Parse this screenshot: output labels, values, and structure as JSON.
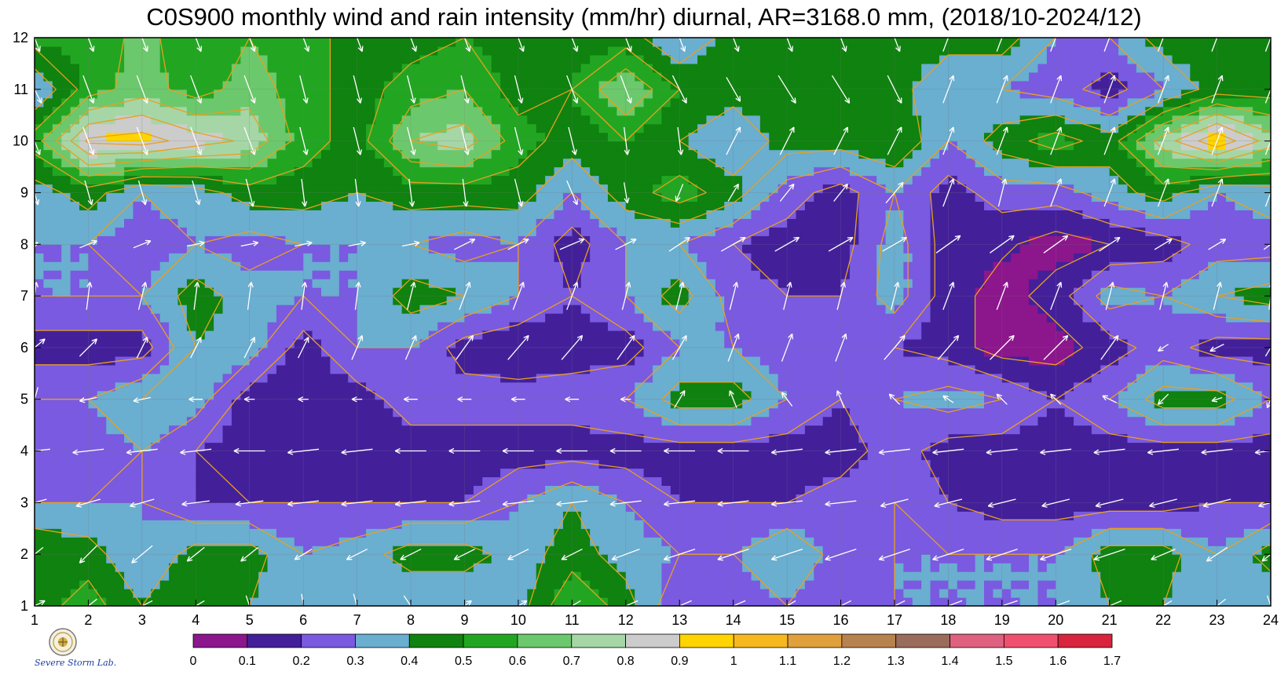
{
  "title": "C0S900 monthly wind and rain intensity (mm/hr) diurnal, AR=3168.0 mm, (2018/10-2024/12)",
  "logo": {
    "icon": "severe-storm-lab-logo-icon",
    "text": "Severe Storm Lab."
  },
  "chart_data": {
    "type": "contour",
    "variable": "rain intensity (mm/hr) with wind vectors",
    "x_ticks": [
      "1",
      "2",
      "3",
      "4",
      "5",
      "6",
      "7",
      "8",
      "9",
      "10",
      "11",
      "12",
      "13",
      "14",
      "15",
      "16",
      "17",
      "18",
      "19",
      "20",
      "21",
      "22",
      "23",
      "24"
    ],
    "y_ticks": [
      "1",
      "2",
      "3",
      "4",
      "5",
      "6",
      "7",
      "8",
      "9",
      "10",
      "11",
      "12"
    ],
    "xlim": [
      1,
      24
    ],
    "ylim": [
      1,
      12
    ],
    "x": [
      1,
      2,
      3,
      4,
      5,
      6,
      7,
      8,
      9,
      10,
      11,
      12,
      13,
      14,
      15,
      16,
      17,
      18,
      19,
      20,
      21,
      22,
      23,
      24
    ],
    "y": [
      1,
      2,
      3,
      4,
      5,
      6,
      7,
      8,
      9,
      10,
      11,
      12
    ],
    "z": [
      [
        0.45,
        0.55,
        0.4,
        0.5,
        0.4,
        0.3,
        0.3,
        0.3,
        0.3,
        0.35,
        0.6,
        0.45,
        0.2,
        0.2,
        0.3,
        0.2,
        0.3,
        0.3,
        0.3,
        0.3,
        0.4,
        0.4,
        0.3,
        0.3
      ],
      [
        0.5,
        0.45,
        0.3,
        0.45,
        0.45,
        0.3,
        0.35,
        0.45,
        0.45,
        0.35,
        0.45,
        0.35,
        0.3,
        0.3,
        0.4,
        0.25,
        0.3,
        0.3,
        0.3,
        0.3,
        0.45,
        0.45,
        0.3,
        0.45
      ],
      [
        0.3,
        0.3,
        0.3,
        0.2,
        0.2,
        0.2,
        0.2,
        0.2,
        0.2,
        0.3,
        0.4,
        0.3,
        0.2,
        0.2,
        0.2,
        0.25,
        0.3,
        0.2,
        0.15,
        0.15,
        0.15,
        0.15,
        0.2,
        0.2
      ],
      [
        0.25,
        0.25,
        0.3,
        0.2,
        0.15,
        0.15,
        0.15,
        0.15,
        0.15,
        0.15,
        0.15,
        0.15,
        0.15,
        0.15,
        0.15,
        0.15,
        0.25,
        0.15,
        0.15,
        0.15,
        0.15,
        0.15,
        0.15,
        0.15
      ],
      [
        0.3,
        0.3,
        0.4,
        0.35,
        0.15,
        0.15,
        0.15,
        0.25,
        0.25,
        0.25,
        0.25,
        0.3,
        0.45,
        0.45,
        0.3,
        0.2,
        0.3,
        0.35,
        0.3,
        0.2,
        0.3,
        0.45,
        0.45,
        0.3
      ],
      [
        0.15,
        0.15,
        0.15,
        0.4,
        0.35,
        0.15,
        0.3,
        0.3,
        0.15,
        0.12,
        0.15,
        0.15,
        0.3,
        0.3,
        0.25,
        0.25,
        0.2,
        0.15,
        0.05,
        0.05,
        0.15,
        0.25,
        0.15,
        0.15
      ],
      [
        0.3,
        0.3,
        0.3,
        0.45,
        0.35,
        0.3,
        0.3,
        0.45,
        0.4,
        0.3,
        0.2,
        0.3,
        0.45,
        0.25,
        0.2,
        0.2,
        0.35,
        0.15,
        0.05,
        0.15,
        0.35,
        0.3,
        0.4,
        0.45
      ],
      [
        0.3,
        0.3,
        0.25,
        0.3,
        0.25,
        0.3,
        0.3,
        0.3,
        0.25,
        0.3,
        0.15,
        0.3,
        0.3,
        0.2,
        0.15,
        0.15,
        0.35,
        0.15,
        0.12,
        0.05,
        0.1,
        0.15,
        0.25,
        0.25
      ],
      [
        0.35,
        0.45,
        0.3,
        0.35,
        0.45,
        0.45,
        0.4,
        0.45,
        0.45,
        0.45,
        0.3,
        0.45,
        0.55,
        0.45,
        0.25,
        0.15,
        0.3,
        0.15,
        0.25,
        0.25,
        0.35,
        0.45,
        0.3,
        0.35
      ],
      [
        0.55,
        0.92,
        0.95,
        0.85,
        0.78,
        0.55,
        0.45,
        0.7,
        0.75,
        0.55,
        0.45,
        0.5,
        0.4,
        0.3,
        0.45,
        0.45,
        0.5,
        0.3,
        0.45,
        0.55,
        0.45,
        0.75,
        0.98,
        0.75
      ],
      [
        0.3,
        0.55,
        0.65,
        0.55,
        0.65,
        0.55,
        0.45,
        0.55,
        0.6,
        0.45,
        0.5,
        0.7,
        0.5,
        0.45,
        0.45,
        0.5,
        0.45,
        0.3,
        0.3,
        0.25,
        0.15,
        0.3,
        0.45,
        0.45
      ],
      [
        0.55,
        0.5,
        0.65,
        0.5,
        0.6,
        0.55,
        0.45,
        0.45,
        0.5,
        0.45,
        0.45,
        0.45,
        0.3,
        0.45,
        0.45,
        0.45,
        0.45,
        0.45,
        0.45,
        0.3,
        0.3,
        0.45,
        0.45,
        0.45
      ]
    ],
    "wind": {
      "u": [
        [
          0.6,
          -0.5,
          -0.6,
          -0.5,
          0.2,
          0.1,
          0.2,
          0.4,
          0.4,
          0.5,
          -0.5,
          -0.7,
          -0.7,
          -0.7,
          -0.5,
          -0.6,
          -0.6,
          -0.8,
          -0.9,
          -0.8,
          -0.7,
          -0.5,
          -0.5,
          0.2
        ],
        [
          -0.5,
          -0.5,
          -0.6,
          -0.5,
          -0.5,
          -0.5,
          -0.6,
          -0.6,
          -0.6,
          -0.6,
          -0.6,
          -0.8,
          -0.9,
          -0.9,
          -0.9,
          -0.9,
          -0.9,
          -0.9,
          -0.9,
          -0.9,
          -0.9,
          -0.7,
          -0.6,
          -0.5
        ],
        [
          -0.7,
          -0.7,
          -0.7,
          -0.8,
          -0.8,
          -0.9,
          -0.9,
          -0.9,
          -0.9,
          -0.9,
          -0.9,
          -0.9,
          -0.9,
          -0.9,
          -0.9,
          -0.9,
          -0.8,
          -0.8,
          -0.8,
          -0.8,
          -0.8,
          -0.8,
          -0.8,
          -0.7
        ],
        [
          -0.9,
          -0.9,
          -0.9,
          -0.9,
          -0.9,
          -0.9,
          -0.9,
          -0.9,
          -0.9,
          -0.9,
          -0.9,
          -0.9,
          -0.9,
          -0.9,
          -0.9,
          -0.9,
          -0.9,
          -0.9,
          -0.9,
          -0.9,
          -0.9,
          -0.9,
          -0.9,
          -0.9
        ],
        [
          -0.2,
          -0.5,
          -0.5,
          -0.4,
          -0.3,
          -0.3,
          -0.3,
          -0.4,
          -0.4,
          -0.4,
          -0.4,
          -0.3,
          0.3,
          -0.2,
          -0.3,
          -0.2,
          -0.3,
          -0.3,
          -0.3,
          -0.3,
          -0.4,
          -0.3,
          -0.3,
          -0.2
        ],
        [
          0.6,
          0.5,
          0.3,
          0.3,
          0.3,
          0.3,
          0.3,
          0.3,
          0.5,
          0.6,
          0.6,
          0.5,
          0.4,
          0.3,
          0.3,
          0.3,
          0.6,
          0.6,
          0.7,
          0.7,
          0.5,
          -0.3,
          -0.4,
          0.3
        ],
        [
          0.1,
          0.1,
          0.2,
          0.1,
          0.1,
          0.1,
          0.1,
          0.2,
          0.3,
          0.3,
          0.3,
          0.2,
          0.2,
          0.2,
          0.2,
          0.2,
          0.2,
          0.3,
          0.3,
          0.3,
          0.2,
          0.2,
          0.2,
          0.1
        ],
        [
          0.2,
          0.5,
          0.5,
          0.5,
          0.5,
          0.5,
          0.5,
          0.5,
          0.6,
          0.6,
          0.7,
          0.6,
          0.6,
          0.7,
          0.7,
          0.7,
          0.7,
          0.7,
          0.7,
          0.7,
          0.6,
          0.5,
          0.5,
          0.4
        ],
        [
          0.2,
          0.2,
          0.2,
          0.2,
          0.2,
          0.1,
          0.1,
          0.1,
          0.1,
          0.2,
          0.3,
          0.1,
          -0.2,
          0.3,
          0.4,
          0.4,
          0.5,
          0.3,
          0.2,
          0.3,
          0.3,
          0.3,
          0.3,
          0.3
        ],
        [
          0.3,
          0.3,
          0.3,
          0.3,
          0.3,
          0.2,
          0.2,
          0.2,
          0.2,
          0.2,
          0.2,
          0.1,
          0.1,
          0.4,
          0.4,
          0.4,
          0.4,
          0.3,
          0.3,
          0.3,
          0.3,
          0.3,
          0.3,
          0.3
        ],
        [
          0.4,
          0.3,
          0.3,
          0.3,
          0.3,
          0.2,
          0.2,
          0.2,
          0.2,
          0.2,
          0.3,
          0.3,
          0.4,
          0.4,
          0.5,
          0.5,
          0.4,
          0.3,
          0.3,
          0.3,
          0.3,
          0.3,
          0.3,
          0.3
        ],
        [
          0.3,
          0.3,
          0.3,
          0.3,
          0.3,
          0.3,
          0.3,
          0.3,
          0.3,
          0.3,
          0.3,
          0.3,
          0.3,
          0.3,
          0.3,
          0.3,
          0.3,
          0.3,
          0.3,
          0.3,
          0.3,
          0.3,
          0.3,
          0.3
        ]
      ],
      "v": [
        [
          0.3,
          -0.4,
          -0.3,
          -0.3,
          -0.6,
          -0.7,
          -0.7,
          -0.6,
          0.3,
          0.3,
          -0.3,
          -0.3,
          -0.3,
          -0.3,
          -0.3,
          -0.3,
          -0.3,
          -0.3,
          -0.3,
          -0.3,
          -0.3,
          -0.3,
          -0.4,
          -0.6
        ],
        [
          -0.4,
          -0.5,
          -0.5,
          -0.4,
          -0.4,
          -0.3,
          -0.3,
          -0.3,
          -0.3,
          -0.3,
          -0.3,
          -0.3,
          -0.3,
          -0.3,
          -0.3,
          -0.3,
          -0.3,
          -0.3,
          -0.3,
          -0.3,
          -0.3,
          -0.3,
          -0.4,
          -0.4
        ],
        [
          -0.2,
          -0.2,
          -0.2,
          -0.1,
          -0.1,
          -0.1,
          -0.1,
          -0.1,
          -0.1,
          -0.1,
          -0.1,
          -0.1,
          -0.1,
          -0.1,
          -0.1,
          -0.1,
          -0.2,
          -0.2,
          -0.2,
          -0.2,
          -0.2,
          -0.2,
          -0.2,
          -0.2
        ],
        [
          -0.1,
          -0.1,
          -0.1,
          -0.1,
          0.0,
          -0.1,
          -0.1,
          0.0,
          0.0,
          0.0,
          0.0,
          0.0,
          0.0,
          0.0,
          -0.1,
          -0.1,
          -0.1,
          -0.1,
          -0.1,
          -0.1,
          -0.1,
          -0.1,
          -0.1,
          -0.1
        ],
        [
          -0.7,
          -0.1,
          -0.1,
          0.0,
          0.0,
          0.0,
          0.0,
          0.0,
          0.0,
          0.0,
          0.0,
          0.0,
          0.5,
          0.5,
          0.4,
          0.5,
          0.3,
          0.2,
          0.3,
          0.3,
          0.2,
          -0.3,
          -0.1,
          -0.5
        ],
        [
          0.5,
          0.5,
          0.6,
          0.6,
          0.6,
          0.6,
          0.7,
          0.7,
          0.7,
          0.7,
          0.7,
          0.7,
          0.7,
          0.8,
          0.8,
          0.8,
          0.7,
          0.7,
          0.7,
          0.7,
          0.7,
          -0.2,
          -0.2,
          0.5
        ],
        [
          0.8,
          0.8,
          0.8,
          0.8,
          0.8,
          0.8,
          0.8,
          0.8,
          0.8,
          0.8,
          0.8,
          0.8,
          0.8,
          0.8,
          0.8,
          0.8,
          0.8,
          0.8,
          0.8,
          0.8,
          0.8,
          0.8,
          0.8,
          0.8
        ],
        [
          0.1,
          0.2,
          0.2,
          0.1,
          0.1,
          0.1,
          0.1,
          0.1,
          0.3,
          0.3,
          0.3,
          0.3,
          0.4,
          0.4,
          0.4,
          0.4,
          0.4,
          0.5,
          0.5,
          0.5,
          0.4,
          0.3,
          0.3,
          0.3
        ],
        [
          -0.7,
          -0.7,
          -0.7,
          -0.7,
          -0.8,
          -0.8,
          -0.8,
          -0.8,
          -0.8,
          -0.8,
          -0.7,
          -0.6,
          -0.5,
          0.5,
          0.5,
          0.5,
          0.6,
          0.8,
          0.8,
          0.8,
          0.8,
          0.8,
          0.8,
          0.8
        ],
        [
          -0.8,
          -0.8,
          -0.8,
          -0.8,
          -0.8,
          -0.8,
          -0.8,
          -0.8,
          -0.8,
          -0.8,
          -0.8,
          -0.8,
          -0.8,
          0.8,
          0.8,
          0.8,
          0.8,
          0.8,
          0.8,
          0.8,
          0.8,
          0.8,
          0.8,
          0.8
        ],
        [
          -0.8,
          -0.8,
          -0.8,
          -0.8,
          -0.8,
          -0.8,
          -0.8,
          -0.8,
          -0.8,
          -0.8,
          -0.8,
          -0.8,
          -0.8,
          -0.7,
          -0.8,
          -0.8,
          -0.8,
          0.8,
          0.8,
          0.8,
          0.8,
          0.8,
          0.8,
          0.8
        ],
        [
          -0.8,
          -0.8,
          -0.8,
          -0.8,
          -0.8,
          -0.8,
          -0.8,
          -0.8,
          -0.8,
          -0.8,
          -0.8,
          -0.8,
          -0.8,
          -0.8,
          -0.8,
          -0.8,
          -0.8,
          0.8,
          0.8,
          0.8,
          0.8,
          0.8,
          0.8,
          0.8
        ]
      ]
    },
    "colorbar": {
      "levels": [
        0,
        0.1,
        0.2,
        0.3,
        0.4,
        0.5,
        0.6,
        0.7,
        0.8,
        0.9,
        1,
        1.1,
        1.2,
        1.3,
        1.4,
        1.5,
        1.6,
        1.7
      ],
      "labels": [
        "0",
        "0.1",
        "0.2",
        "0.3",
        "0.4",
        "0.5",
        "0.6",
        "0.7",
        "0.8",
        "0.9",
        "1",
        "1.1",
        "1.2",
        "1.3",
        "1.4",
        "1.5",
        "1.6",
        "1.7"
      ],
      "colors": [
        "#8c168c",
        "#43209a",
        "#7a5ae0",
        "#6aaed0",
        "#0f820f",
        "#22a622",
        "#6cc86c",
        "#a6d6a6",
        "#cccccc",
        "#ffd400",
        "#f6b81e",
        "#e0a03c",
        "#b8824e",
        "#9a6c5c",
        "#e06080",
        "#f0506e",
        "#d8243c"
      ]
    },
    "contour_line_color": "#e8a020",
    "arrow_color": "#ffffff",
    "grid": true
  }
}
